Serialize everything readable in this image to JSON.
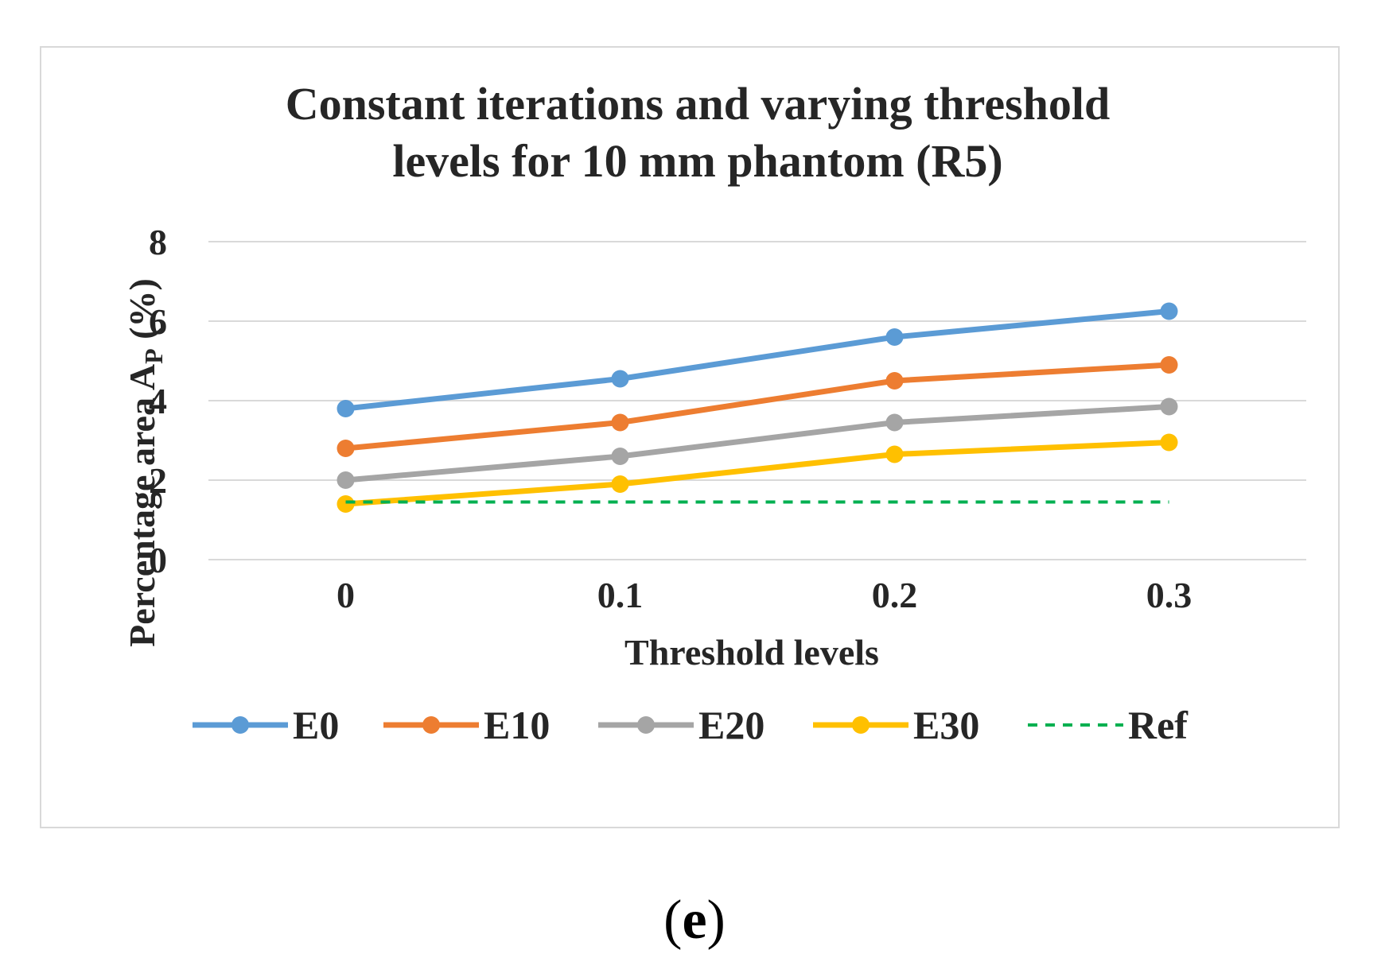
{
  "chart_data": {
    "type": "line",
    "title_line1": "Constant iterations and varying threshold",
    "title_line2": "levels for 10 mm phantom (R5)",
    "xlabel": "Threshold levels",
    "ylabel_main": "Percentage area A",
    "ylabel_sub": "P",
    "ylabel_unit": " (%)",
    "categories": [
      "0",
      "0.1",
      "0.2",
      "0.3"
    ],
    "ylim": [
      0,
      8
    ],
    "yticks": [
      "0",
      "2",
      "4",
      "6",
      "8"
    ],
    "grid": true,
    "legend_position": "bottom",
    "series": [
      {
        "name": "E0",
        "values": [
          3.8,
          4.55,
          5.6,
          6.25
        ],
        "color": "#5b9bd5",
        "dashed": false
      },
      {
        "name": "E10",
        "values": [
          2.8,
          3.45,
          4.5,
          4.9
        ],
        "color": "#ed7d31",
        "dashed": false
      },
      {
        "name": "E20",
        "values": [
          2.0,
          2.6,
          3.45,
          3.85
        ],
        "color": "#a5a5a5",
        "dashed": false
      },
      {
        "name": "E30",
        "values": [
          1.4,
          1.9,
          2.65,
          2.95
        ],
        "color": "#ffc000",
        "dashed": false
      },
      {
        "name": "Ref",
        "values": [
          1.45,
          1.45,
          1.45,
          1.45
        ],
        "color": "#00b050",
        "dashed": true
      }
    ]
  },
  "caption": {
    "open": "(",
    "letter": "e",
    "close": ")"
  }
}
